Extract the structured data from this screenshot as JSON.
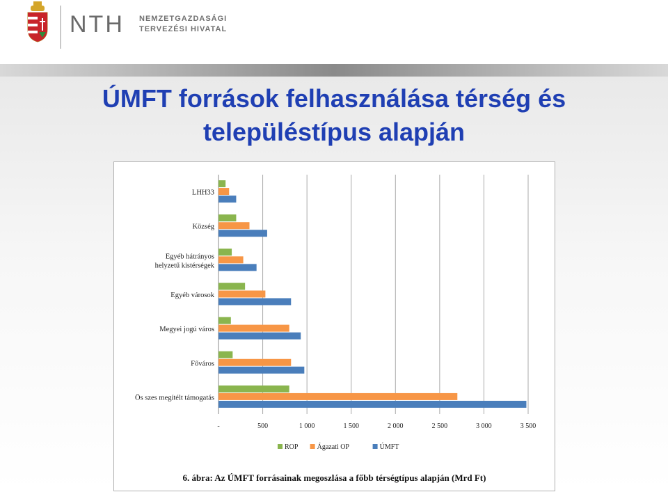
{
  "header": {
    "logo_text": "NTH",
    "institution_line1": "NEMZETGAZDASÁGI",
    "institution_line2": "TERVEZÉSI HIVATAL"
  },
  "slide": {
    "title_line1": "ÚMFT források felhasználása térség és",
    "title_line2": "településtípus alapján",
    "caption": "6. ábra: Az ÚMFT forrásainak megoszlása a főbb térségtípus alapján (Mrd Ft)"
  },
  "colors": {
    "ROP": "#8ab54e",
    "Agazati": "#f79646",
    "UMFT": "#4a7ebb",
    "title": "#1f3fb3"
  },
  "chart_data": {
    "type": "bar",
    "orientation": "horizontal",
    "categories": [
      "LHH33",
      "Község",
      "Egyéb hátrányos helyzetű kistérségek",
      "Egyéb városok",
      "Megyei jogú város",
      "Főváros",
      "Ös szes megítélt támogatás"
    ],
    "category_lines": [
      [
        "LHH33"
      ],
      [
        "Község"
      ],
      [
        "Egyéb hátrányos",
        "helyzetű kistérségek"
      ],
      [
        "Egyéb városok"
      ],
      [
        "Megyei jogú város"
      ],
      [
        "Főváros"
      ],
      [
        "Ös szes megítélt támogatás"
      ]
    ],
    "series": [
      {
        "name": "ROP",
        "values": [
          80,
          200,
          150,
          300,
          140,
          160,
          800
        ]
      },
      {
        "name": "Ágazati OP",
        "values": [
          120,
          350,
          280,
          530,
          800,
          820,
          2700
        ]
      },
      {
        "name": "ÚMFT",
        "values": [
          200,
          550,
          430,
          820,
          930,
          970,
          3480
        ]
      }
    ],
    "xlim": [
      0,
      3500
    ],
    "xticks": [
      "-",
      "500",
      "1 000",
      "1 500",
      "2 000",
      "2 500",
      "3 000",
      "3 500"
    ],
    "grid": "vertical",
    "legend_position": "bottom"
  }
}
